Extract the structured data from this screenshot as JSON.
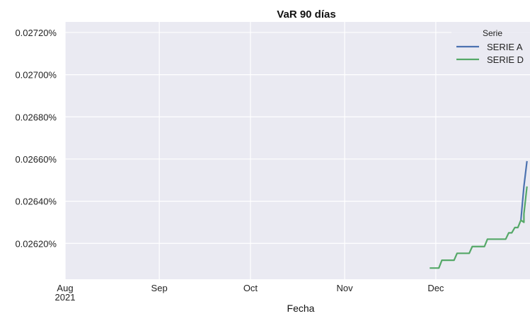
{
  "chart_data": {
    "type": "line",
    "title": "VaR 90 días",
    "xlabel": "Fecha",
    "ylabel": "",
    "x_axis": {
      "ticks": [
        {
          "date": "2021-08-01",
          "label": "Aug",
          "sublabel": "2021"
        },
        {
          "date": "2021-09-01",
          "label": "Sep",
          "sublabel": ""
        },
        {
          "date": "2021-10-01",
          "label": "Oct",
          "sublabel": ""
        },
        {
          "date": "2021-11-01",
          "label": "Nov",
          "sublabel": ""
        },
        {
          "date": "2021-12-01",
          "label": "Dec",
          "sublabel": ""
        }
      ],
      "range": [
        "2021-08-01",
        "2021-12-31"
      ]
    },
    "y_axis": {
      "ticks": [
        {
          "value": 0.0262,
          "label": "0.02620%"
        },
        {
          "value": 0.0264,
          "label": "0.02640%"
        },
        {
          "value": 0.0266,
          "label": "0.02660%"
        },
        {
          "value": 0.0268,
          "label": "0.02680%"
        },
        {
          "value": 0.027,
          "label": "0.02700%"
        },
        {
          "value": 0.0272,
          "label": "0.02720%"
        }
      ],
      "ylim": [
        0.02603,
        0.02725
      ]
    },
    "grid": true,
    "background": "#eaeaf2",
    "legend": {
      "title": "Serie",
      "placement": "top-right"
    },
    "series": [
      {
        "name": "SERIE A",
        "color": "#4c72b0",
        "points": [
          [
            "2021-12-29",
            0.02631
          ],
          [
            "2021-12-30",
            0.02647
          ],
          [
            "2021-12-31",
            0.02659
          ]
        ]
      },
      {
        "name": "SERIE D",
        "color": "#55a868",
        "points": [
          [
            "2021-11-29",
            0.026083
          ],
          [
            "2021-12-02",
            0.026083
          ],
          [
            "2021-12-03",
            0.02612
          ],
          [
            "2021-12-07",
            0.02612
          ],
          [
            "2021-12-08",
            0.026153
          ],
          [
            "2021-12-12",
            0.026153
          ],
          [
            "2021-12-13",
            0.026185
          ],
          [
            "2021-12-17",
            0.026185
          ],
          [
            "2021-12-18",
            0.02622
          ],
          [
            "2021-12-24",
            0.02622
          ],
          [
            "2021-12-25",
            0.02625
          ],
          [
            "2021-12-26",
            0.02625
          ],
          [
            "2021-12-27",
            0.026275
          ],
          [
            "2021-12-28",
            0.026275
          ],
          [
            "2021-12-29",
            0.02631
          ],
          [
            "2021-12-30",
            0.0263
          ],
          [
            "2021-12-30",
            0.02634
          ],
          [
            "2021-12-31",
            0.02647
          ]
        ]
      }
    ]
  }
}
